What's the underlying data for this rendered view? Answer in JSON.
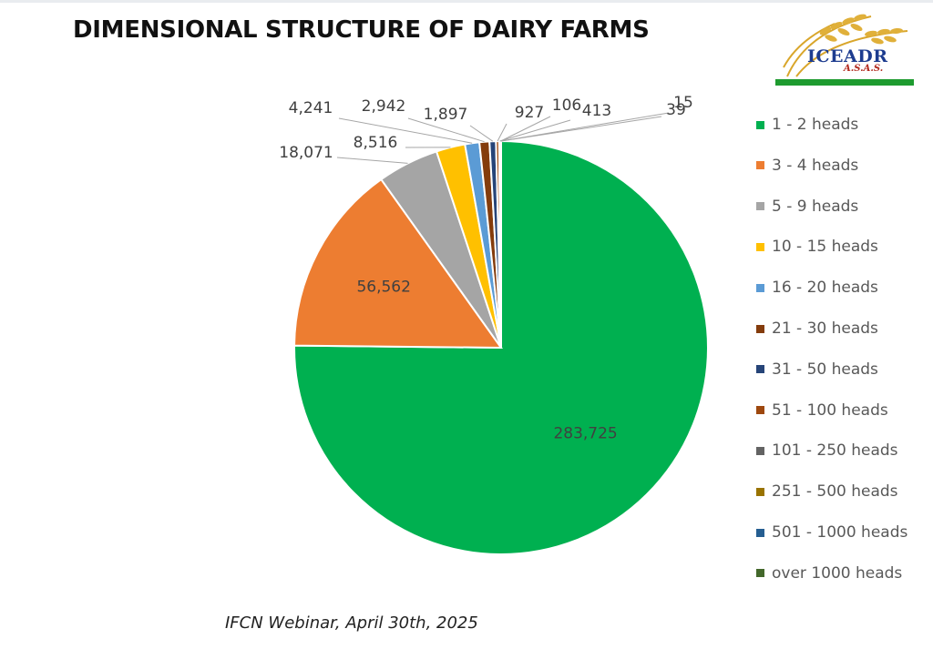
{
  "slide": {
    "title": "DIMENSIONAL STRUCTURE OF DAIRY FARMS",
    "footer": "IFCN Webinar, April 30th, 2025",
    "logo": {
      "name": "ICEADR",
      "subtitle": "A.S.A.S."
    }
  },
  "chart_data": {
    "type": "pie",
    "title": "DIMENSIONAL STRUCTURE OF DAIRY FARMS",
    "legend_position": "right",
    "categories": [
      "1 - 2 heads",
      "3 - 4 heads",
      "5 - 9 heads",
      "10 - 15 heads",
      "16 - 20 heads",
      "21 - 30 heads",
      "31 - 50 heads",
      "51 - 100 heads",
      "101 - 250 heads",
      "251 - 500 heads",
      "501 - 1000 heads",
      "over 1000 heads"
    ],
    "values": [
      283725,
      56562,
      18071,
      8516,
      4241,
      2942,
      1897,
      927,
      413,
      106,
      39,
      15
    ],
    "labels": [
      "283,725",
      "56,562",
      "18,071",
      "8,516",
      "4,241",
      "2,942",
      "1,897",
      "927",
      "413",
      "106",
      "39",
      "15"
    ],
    "colors": [
      "#00b050",
      "#ed7d31",
      "#a5a5a5",
      "#ffc000",
      "#5b9bd5",
      "#843c0c",
      "#264478",
      "#9e480e",
      "#636363",
      "#997300",
      "#255e91",
      "#43682b"
    ]
  }
}
